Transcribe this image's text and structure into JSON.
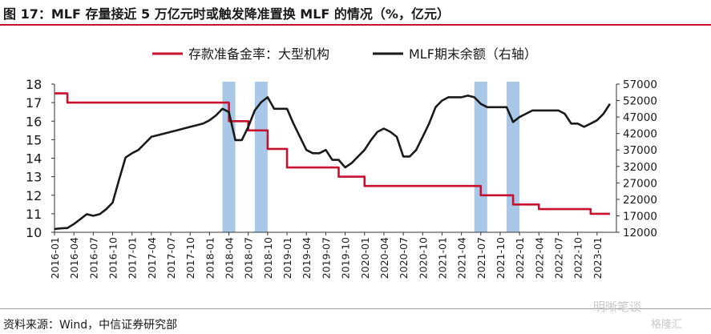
{
  "figure": {
    "title": "图 17：MLF 存量接近 5 万亿元时或触发降准置换 MLF 的情况（%，亿元）",
    "source": "资料来源：Wind，中信证券研究部",
    "watermark": "明晰笔谈",
    "watermark_sub": "格隆汇"
  },
  "chart_data": {
    "type": "line",
    "title": "",
    "legend_position": "top-center",
    "colors": {
      "rrr": "#c8102e",
      "mlf": "#1a1a1a",
      "highlight": "#a9c8e8"
    },
    "x_tick_labels": [
      "2016-01",
      "2016-04",
      "2016-07",
      "2016-10",
      "2017-01",
      "2017-04",
      "2017-07",
      "2017-10",
      "2018-01",
      "2018-04",
      "2018-07",
      "2018-10",
      "2019-01",
      "2019-04",
      "2019-07",
      "2019-10",
      "2020-01",
      "2020-04",
      "2020-07",
      "2020-10",
      "2021-01",
      "2021-04",
      "2021-07",
      "2021-10",
      "2022-01",
      "2022-04",
      "2022-07",
      "2022-10",
      "2023-01"
    ],
    "x_range": [
      "2016-01",
      "2023-04"
    ],
    "y_left": {
      "ylim": [
        10,
        18
      ],
      "ticks": [
        10,
        11,
        12,
        13,
        14,
        15,
        16,
        17,
        18
      ],
      "label": ""
    },
    "y_right": {
      "ylim": [
        12000,
        57000
      ],
      "ticks": [
        12000,
        17000,
        22000,
        27000,
        32000,
        37000,
        42000,
        47000,
        52000,
        57000
      ],
      "label": ""
    },
    "highlight_periods": [
      [
        "2018-03",
        "2018-05"
      ],
      [
        "2018-08",
        "2018-10"
      ],
      [
        "2021-06",
        "2021-08"
      ],
      [
        "2021-11",
        "2022-01"
      ]
    ],
    "series": [
      {
        "name": "存款准备金率：大型机构",
        "axis": "left",
        "step": true,
        "points": [
          [
            "2016-01",
            17.5
          ],
          [
            "2016-03",
            17.0
          ],
          [
            "2018-04",
            16.0
          ],
          [
            "2018-07",
            15.5
          ],
          [
            "2018-10",
            14.5
          ],
          [
            "2019-01",
            13.5
          ],
          [
            "2019-09",
            13.0
          ],
          [
            "2020-01",
            12.5
          ],
          [
            "2021-07",
            12.0
          ],
          [
            "2021-12",
            11.5
          ],
          [
            "2022-04",
            11.25
          ],
          [
            "2022-12",
            11.0
          ],
          [
            "2023-03",
            11.0
          ]
        ]
      },
      {
        "name": "MLF期末余额（右轴）",
        "axis": "right",
        "step": false,
        "points": [
          [
            "2016-01",
            13000
          ],
          [
            "2016-02",
            13200
          ],
          [
            "2016-03",
            13300
          ],
          [
            "2016-04",
            14500
          ],
          [
            "2016-05",
            16000
          ],
          [
            "2016-06",
            17500
          ],
          [
            "2016-07",
            17000
          ],
          [
            "2016-08",
            17500
          ],
          [
            "2016-09",
            19000
          ],
          [
            "2016-10",
            21000
          ],
          [
            "2016-11",
            28000
          ],
          [
            "2016-12",
            34700
          ],
          [
            "2017-01",
            36000
          ],
          [
            "2017-02",
            37000
          ],
          [
            "2017-03",
            39000
          ],
          [
            "2017-04",
            41000
          ],
          [
            "2017-05",
            41500
          ],
          [
            "2017-06",
            42000
          ],
          [
            "2017-07",
            42500
          ],
          [
            "2017-08",
            43000
          ],
          [
            "2017-09",
            43500
          ],
          [
            "2017-10",
            44000
          ],
          [
            "2017-11",
            44500
          ],
          [
            "2017-12",
            45000
          ],
          [
            "2018-01",
            46000
          ],
          [
            "2018-02",
            47500
          ],
          [
            "2018-03",
            49500
          ],
          [
            "2018-04",
            48500
          ],
          [
            "2018-05",
            40000
          ],
          [
            "2018-06",
            40000
          ],
          [
            "2018-07",
            44000
          ],
          [
            "2018-08",
            49000
          ],
          [
            "2018-09",
            51500
          ],
          [
            "2018-10",
            53000
          ],
          [
            "2018-11",
            49500
          ],
          [
            "2018-12",
            49500
          ],
          [
            "2019-01",
            49500
          ],
          [
            "2019-02",
            45000
          ],
          [
            "2019-03",
            41000
          ],
          [
            "2019-04",
            37000
          ],
          [
            "2019-05",
            36000
          ],
          [
            "2019-06",
            36000
          ],
          [
            "2019-07",
            37000
          ],
          [
            "2019-08",
            34000
          ],
          [
            "2019-09",
            34000
          ],
          [
            "2019-10",
            31700
          ],
          [
            "2019-11",
            33000
          ],
          [
            "2019-12",
            35000
          ],
          [
            "2020-01",
            37000
          ],
          [
            "2020-02",
            40000
          ],
          [
            "2020-03",
            42500
          ],
          [
            "2020-04",
            43500
          ],
          [
            "2020-05",
            42500
          ],
          [
            "2020-06",
            41000
          ],
          [
            "2020-07",
            35000
          ],
          [
            "2020-08",
            35000
          ],
          [
            "2020-09",
            37000
          ],
          [
            "2020-10",
            41000
          ],
          [
            "2020-11",
            45000
          ],
          [
            "2020-12",
            50000
          ],
          [
            "2021-01",
            52000
          ],
          [
            "2021-02",
            53000
          ],
          [
            "2021-03",
            53000
          ],
          [
            "2021-04",
            53000
          ],
          [
            "2021-05",
            53500
          ],
          [
            "2021-06",
            53000
          ],
          [
            "2021-07",
            51000
          ],
          [
            "2021-08",
            50000
          ],
          [
            "2021-09",
            50000
          ],
          [
            "2021-10",
            50000
          ],
          [
            "2021-11",
            50000
          ],
          [
            "2021-12",
            45500
          ],
          [
            "2022-01",
            47000
          ],
          [
            "2022-02",
            48000
          ],
          [
            "2022-03",
            49000
          ],
          [
            "2022-04",
            49000
          ],
          [
            "2022-05",
            49000
          ],
          [
            "2022-06",
            49000
          ],
          [
            "2022-07",
            49000
          ],
          [
            "2022-08",
            48000
          ],
          [
            "2022-09",
            45000
          ],
          [
            "2022-10",
            45000
          ],
          [
            "2022-11",
            44000
          ],
          [
            "2022-12",
            45000
          ],
          [
            "2023-01",
            46000
          ],
          [
            "2023-02",
            48000
          ],
          [
            "2023-03",
            51000
          ]
        ]
      }
    ]
  }
}
